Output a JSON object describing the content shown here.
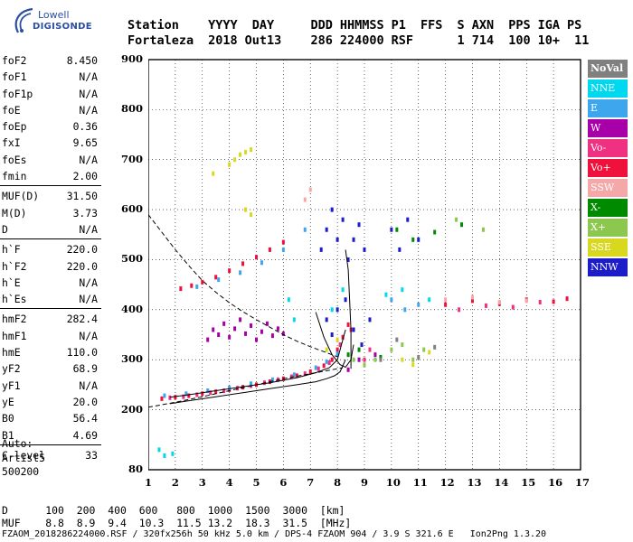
{
  "logo": {
    "line1": "Lowell",
    "line2": "DIGISONDE"
  },
  "header": {
    "labels": [
      "Station",
      "YYYY",
      "DAY",
      "DDD",
      "HHMMSS",
      "P1",
      "FFS",
      "S",
      "AXN",
      "PPS",
      "IGA",
      "PS"
    ],
    "values": [
      "Fortaleza",
      "2018",
      "Out13",
      "286",
      "224000",
      "RSF",
      "",
      "1",
      "714",
      "100",
      "10+",
      "11"
    ]
  },
  "params": [
    {
      "name": "foF2",
      "value": "8.450"
    },
    {
      "name": "foF1",
      "value": "N/A"
    },
    {
      "name": "foF1p",
      "value": "N/A"
    },
    {
      "name": "foE",
      "value": "N/A"
    },
    {
      "name": "foEp",
      "value": "0.36"
    },
    {
      "name": "fxI",
      "value": "9.65"
    },
    {
      "name": "foEs",
      "value": "N/A"
    },
    {
      "name": "fmin",
      "value": "2.00"
    },
    {
      "name": "MUF(D)",
      "value": "31.50"
    },
    {
      "name": "M(D)",
      "value": "3.73"
    },
    {
      "name": "D",
      "value": "N/A"
    },
    {
      "name": "h`F",
      "value": "220.0"
    },
    {
      "name": "h`F2",
      "value": "220.0"
    },
    {
      "name": "h`E",
      "value": "N/A"
    },
    {
      "name": "h`Es",
      "value": "N/A"
    },
    {
      "name": "hmF2",
      "value": "282.4"
    },
    {
      "name": "hmF1",
      "value": "N/A"
    },
    {
      "name": "hmE",
      "value": "110.0"
    },
    {
      "name": "yF2",
      "value": "68.9"
    },
    {
      "name": "yF1",
      "value": "N/A"
    },
    {
      "name": "yE",
      "value": "20.0"
    },
    {
      "name": "B0",
      "value": "56.4"
    },
    {
      "name": "B1",
      "value": "4.69"
    },
    {
      "name": "C-level",
      "value": "33"
    }
  ],
  "auto": {
    "line1": "Auto:",
    "line2": "Artist5",
    "line3": "500200"
  },
  "legend": [
    {
      "label": "NoVal",
      "color": "#808080"
    },
    {
      "label": "NNE",
      "color": "#00d8f0"
    },
    {
      "label": "E",
      "color": "#3ea6ec"
    },
    {
      "label": "W",
      "color": "#a800a8"
    },
    {
      "label": "Vo-",
      "color": "#f03080"
    },
    {
      "label": "Vo+",
      "color": "#f0103c"
    },
    {
      "label": "SSW",
      "color": "#f4a8a8"
    },
    {
      "label": "X-",
      "color": "#008a00"
    },
    {
      "label": "X+",
      "color": "#8cc850"
    },
    {
      "label": "SSE",
      "color": "#d8d820"
    },
    {
      "label": "NNW",
      "color": "#1c1cc8"
    }
  ],
  "footer": {
    "row1_label": "D",
    "row1": [
      "100",
      "200",
      "400",
      "600",
      "800",
      "1000",
      "1500",
      "3000",
      "[km]"
    ],
    "row2_label": "MUF",
    "row2": [
      "8.8",
      "8.9",
      "9.4",
      "10.3",
      "11.5",
      "13.2",
      "18.3",
      "31.5",
      "[MHz]"
    ],
    "info": "FZAOM_2018286224000.RSF / 320fx256h 50 kHz 5.0 km / DPS-4 FZAOM 904 / 3.9 S 321.6 E   Ion2Png 1.3.20"
  },
  "chart_data": {
    "type": "scatter",
    "title": "",
    "xlabel": "",
    "ylabel": "",
    "xlim": [
      1,
      17
    ],
    "ylim": [
      80,
      900
    ],
    "xticks": [
      1,
      2,
      3,
      4,
      5,
      6,
      7,
      8,
      9,
      10,
      11,
      12,
      13,
      14,
      15,
      16,
      17
    ],
    "yticks": [
      80,
      200,
      300,
      400,
      500,
      600,
      700,
      800,
      900
    ],
    "grid": true,
    "series": [
      {
        "name": "Vo+",
        "color": "#f0103c",
        "points": [
          [
            1.5,
            222
          ],
          [
            2,
            225
          ],
          [
            2.5,
            228
          ],
          [
            3,
            232
          ],
          [
            3.5,
            236
          ],
          [
            4,
            240
          ],
          [
            4.5,
            245
          ],
          [
            5,
            250
          ],
          [
            5.5,
            256
          ],
          [
            6,
            262
          ],
          [
            6.5,
            268
          ],
          [
            7,
            276
          ],
          [
            7.5,
            288
          ],
          [
            7.8,
            300
          ],
          [
            8.0,
            320
          ],
          [
            8.2,
            345
          ],
          [
            8.4,
            370
          ],
          [
            2.2,
            442
          ],
          [
            2.6,
            448
          ],
          [
            3,
            455
          ],
          [
            3.5,
            465
          ],
          [
            4,
            478
          ],
          [
            4.5,
            492
          ],
          [
            5,
            505
          ],
          [
            5.5,
            520
          ],
          [
            6,
            535
          ],
          [
            12,
            410
          ],
          [
            13,
            418
          ],
          [
            14,
            412
          ],
          [
            15,
            420
          ],
          [
            16,
            416
          ],
          [
            16.5,
            422
          ]
        ]
      },
      {
        "name": "Vo-",
        "color": "#f03080",
        "points": [
          [
            1.8,
            224
          ],
          [
            2.3,
            226
          ],
          [
            2.8,
            230
          ],
          [
            3.3,
            234
          ],
          [
            3.8,
            238
          ],
          [
            4.3,
            243
          ],
          [
            4.8,
            248
          ],
          [
            5.3,
            254
          ],
          [
            5.8,
            260
          ],
          [
            6.3,
            266
          ],
          [
            6.8,
            272
          ],
          [
            7.3,
            282
          ],
          [
            7.7,
            294
          ],
          [
            8.1,
            330
          ],
          [
            8.5,
            360
          ],
          [
            9,
            300
          ],
          [
            9.2,
            320
          ],
          [
            12.5,
            400
          ],
          [
            13.5,
            408
          ],
          [
            14.5,
            405
          ],
          [
            15.5,
            415
          ]
        ]
      },
      {
        "name": "E",
        "color": "#3ea6ec",
        "points": [
          [
            1.6,
            228
          ],
          [
            2.4,
            232
          ],
          [
            3.2,
            238
          ],
          [
            4,
            244
          ],
          [
            4.8,
            252
          ],
          [
            5.6,
            260
          ],
          [
            6.4,
            270
          ],
          [
            7.2,
            284
          ],
          [
            7.6,
            296
          ],
          [
            8,
            312
          ],
          [
            2.8,
            446
          ],
          [
            3.6,
            460
          ],
          [
            4.4,
            474
          ],
          [
            5.2,
            494
          ],
          [
            6,
            520
          ],
          [
            6.8,
            560
          ],
          [
            10,
            420
          ],
          [
            10.5,
            400
          ],
          [
            11,
            410
          ]
        ]
      },
      {
        "name": "NNE",
        "color": "#00d8f0",
        "points": [
          [
            1.4,
            120
          ],
          [
            1.6,
            108
          ],
          [
            1.9,
            112
          ],
          [
            6.2,
            420
          ],
          [
            6.4,
            380
          ],
          [
            7.8,
            400
          ],
          [
            8.2,
            440
          ],
          [
            9.8,
            430
          ],
          [
            10.4,
            440
          ],
          [
            11.4,
            420
          ]
        ]
      },
      {
        "name": "W",
        "color": "#a800a8",
        "points": [
          [
            3.2,
            340
          ],
          [
            3.4,
            360
          ],
          [
            3.6,
            350
          ],
          [
            3.8,
            372
          ],
          [
            4,
            345
          ],
          [
            4.2,
            362
          ],
          [
            4.4,
            380
          ],
          [
            4.6,
            352
          ],
          [
            4.8,
            368
          ],
          [
            5,
            340
          ],
          [
            5.2,
            356
          ],
          [
            5.4,
            372
          ],
          [
            5.6,
            348
          ],
          [
            5.8,
            362
          ],
          [
            6,
            352
          ],
          [
            8.4,
            280
          ],
          [
            8.8,
            300
          ],
          [
            9.4,
            310
          ]
        ]
      },
      {
        "name": "NNW",
        "color": "#1c1cc8",
        "points": [
          [
            7.4,
            520
          ],
          [
            7.6,
            560
          ],
          [
            7.8,
            600
          ],
          [
            8,
            540
          ],
          [
            8.2,
            580
          ],
          [
            8.4,
            500
          ],
          [
            8.6,
            540
          ],
          [
            8.8,
            570
          ],
          [
            9,
            520
          ],
          [
            7.6,
            380
          ],
          [
            7.8,
            350
          ],
          [
            8,
            400
          ],
          [
            8.3,
            420
          ],
          [
            8.6,
            360
          ],
          [
            8.9,
            330
          ],
          [
            9.2,
            380
          ],
          [
            10,
            560
          ],
          [
            10.3,
            520
          ],
          [
            10.6,
            580
          ],
          [
            11,
            540
          ]
        ]
      },
      {
        "name": "X+",
        "color": "#8cc850",
        "points": [
          [
            8.6,
            300
          ],
          [
            9,
            290
          ],
          [
            9.4,
            300
          ],
          [
            10,
            320
          ],
          [
            10.4,
            330
          ],
          [
            10.8,
            300
          ],
          [
            11.2,
            320
          ],
          [
            13.4,
            560
          ],
          [
            12.4,
            580
          ]
        ]
      },
      {
        "name": "X-",
        "color": "#008a00",
        "points": [
          [
            8.4,
            310
          ],
          [
            8.8,
            320
          ],
          [
            9.6,
            305
          ],
          [
            10.2,
            560
          ],
          [
            11.6,
            555
          ],
          [
            12.6,
            570
          ],
          [
            10.8,
            540
          ]
        ]
      },
      {
        "name": "SSE",
        "color": "#d8d820",
        "points": [
          [
            4,
            690
          ],
          [
            4.2,
            700
          ],
          [
            4.4,
            710
          ],
          [
            4.6,
            715
          ],
          [
            4.8,
            720
          ],
          [
            3.4,
            672
          ],
          [
            4.6,
            600
          ],
          [
            4.8,
            590
          ],
          [
            7.6,
            320
          ],
          [
            8,
            340
          ],
          [
            10.4,
            300
          ],
          [
            10.8,
            290
          ],
          [
            11.4,
            315
          ]
        ]
      },
      {
        "name": "SSW",
        "color": "#f4a8a8",
        "points": [
          [
            6.8,
            620
          ],
          [
            7,
            640
          ],
          [
            12,
            420
          ],
          [
            13,
            425
          ],
          [
            14,
            415
          ],
          [
            15,
            418
          ]
        ]
      },
      {
        "name": "NoVal",
        "color": "#808080",
        "points": [
          [
            9.6,
            300
          ],
          [
            10.2,
            340
          ],
          [
            11,
            305
          ],
          [
            11.6,
            325
          ]
        ]
      }
    ],
    "curves": [
      {
        "label": "",
        "style": "dashed",
        "x": [
          1.0,
          1.5,
          2.0,
          2.5,
          3.0,
          3.5,
          4.0,
          4.5,
          5.0,
          5.5,
          6.0,
          6.5,
          7.0,
          7.5,
          7.8,
          8.0
        ],
        "y": [
          590,
          555,
          520,
          488,
          458,
          435,
          414,
          396,
          380,
          365,
          350,
          337,
          326,
          316,
          310,
          306
        ]
      },
      {
        "label": "",
        "style": "dashed",
        "x": [
          1.0,
          2.0,
          3.0,
          4.0,
          5.0,
          6.0,
          7.0,
          7.8,
          8.2
        ],
        "y": [
          205,
          215,
          226,
          238,
          250,
          262,
          272,
          280,
          284
        ]
      },
      {
        "label": "",
        "style": "solid",
        "x": [
          1.8,
          2.5,
          3.5,
          4.5,
          5.5,
          6.5,
          7.2,
          7.6,
          7.9,
          8.1,
          8.3
        ],
        "y": [
          212,
          218,
          226,
          234,
          242,
          250,
          256,
          262,
          268,
          276,
          300
        ]
      },
      {
        "label": "",
        "style": "solid",
        "x": [
          1.8,
          2.5,
          3.5,
          4.5,
          5.5,
          6.5,
          7.2,
          7.7,
          8.0,
          8.3
        ],
        "y": [
          225,
          230,
          238,
          246,
          254,
          264,
          274,
          284,
          300,
          360
        ]
      },
      {
        "label": "",
        "style": "solid",
        "x": [
          7.2,
          7.5,
          7.8,
          8.1,
          8.3,
          8.5,
          8.6
        ],
        "y": [
          395,
          345,
          310,
          290,
          285,
          300,
          330
        ]
      },
      {
        "label": "",
        "style": "solid",
        "x": [
          8.3,
          8.4,
          8.45,
          8.5,
          8.5
        ],
        "y": [
          520,
          480,
          420,
          360,
          282
        ]
      }
    ]
  }
}
